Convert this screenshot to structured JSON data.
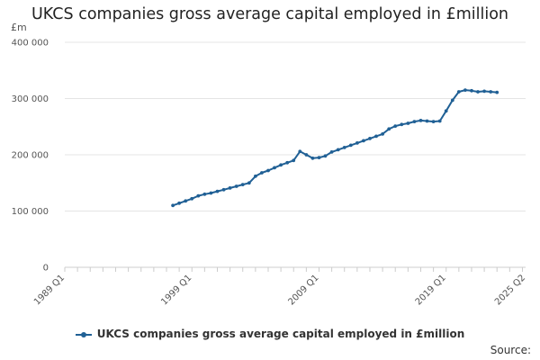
{
  "chart_data": {
    "type": "line",
    "title": "UKCS companies gross average capital employed in £million",
    "unit_label": "£m",
    "ylim": [
      0,
      400000
    ],
    "y_ticks": [
      0,
      100000,
      200000,
      300000,
      400000
    ],
    "y_tick_labels": [
      "0",
      "100 000",
      "200 000",
      "300 000",
      "400 000"
    ],
    "x_range": [
      "1989 Q1",
      "2025 Q2"
    ],
    "x_tick_labels": [
      "1989 Q1",
      "1999 Q1",
      "2009 Q1",
      "2019 Q1",
      "2025 Q2"
    ],
    "grid": "horizontal",
    "legend_position": "bottom",
    "color": "#206095",
    "series": [
      {
        "name": "UKCS companies gross average capital employed in £million",
        "points": [
          [
            "1997 Q3",
            110000
          ],
          [
            "1998 Q1",
            114000
          ],
          [
            "1998 Q3",
            118000
          ],
          [
            "1999 Q1",
            122000
          ],
          [
            "1999 Q3",
            127000
          ],
          [
            "2000 Q1",
            130000
          ],
          [
            "2000 Q3",
            132000
          ],
          [
            "2001 Q1",
            135000
          ],
          [
            "2001 Q3",
            138000
          ],
          [
            "2002 Q1",
            141000
          ],
          [
            "2002 Q3",
            144000
          ],
          [
            "2003 Q1",
            147000
          ],
          [
            "2003 Q3",
            150000
          ],
          [
            "2004 Q1",
            162000
          ],
          [
            "2004 Q3",
            168000
          ],
          [
            "2005 Q1",
            172000
          ],
          [
            "2005 Q3",
            177000
          ],
          [
            "2006 Q1",
            182000
          ],
          [
            "2006 Q3",
            186000
          ],
          [
            "2007 Q1",
            190000
          ],
          [
            "2007 Q3",
            206000
          ],
          [
            "2008 Q1",
            200000
          ],
          [
            "2008 Q3",
            194000
          ],
          [
            "2009 Q1",
            195000
          ],
          [
            "2009 Q3",
            198000
          ],
          [
            "2010 Q1",
            205000
          ],
          [
            "2010 Q3",
            209000
          ],
          [
            "2011 Q1",
            213000
          ],
          [
            "2011 Q3",
            217000
          ],
          [
            "2012 Q1",
            221000
          ],
          [
            "2012 Q3",
            225000
          ],
          [
            "2013 Q1",
            229000
          ],
          [
            "2013 Q3",
            233000
          ],
          [
            "2014 Q1",
            237000
          ],
          [
            "2014 Q3",
            246000
          ],
          [
            "2015 Q1",
            251000
          ],
          [
            "2015 Q3",
            254000
          ],
          [
            "2016 Q1",
            256000
          ],
          [
            "2016 Q3",
            259000
          ],
          [
            "2017 Q1",
            261000
          ],
          [
            "2017 Q3",
            260000
          ],
          [
            "2018 Q1",
            259000
          ],
          [
            "2018 Q3",
            260000
          ],
          [
            "2019 Q1",
            278000
          ],
          [
            "2019 Q3",
            297000
          ],
          [
            "2020 Q1",
            312000
          ],
          [
            "2020 Q3",
            315000
          ],
          [
            "2021 Q1",
            314000
          ],
          [
            "2021 Q3",
            312000
          ],
          [
            "2022 Q1",
            313000
          ],
          [
            "2022 Q3",
            312000
          ],
          [
            "2023 Q1",
            311000
          ]
        ]
      }
    ]
  },
  "source_label": "Source:"
}
